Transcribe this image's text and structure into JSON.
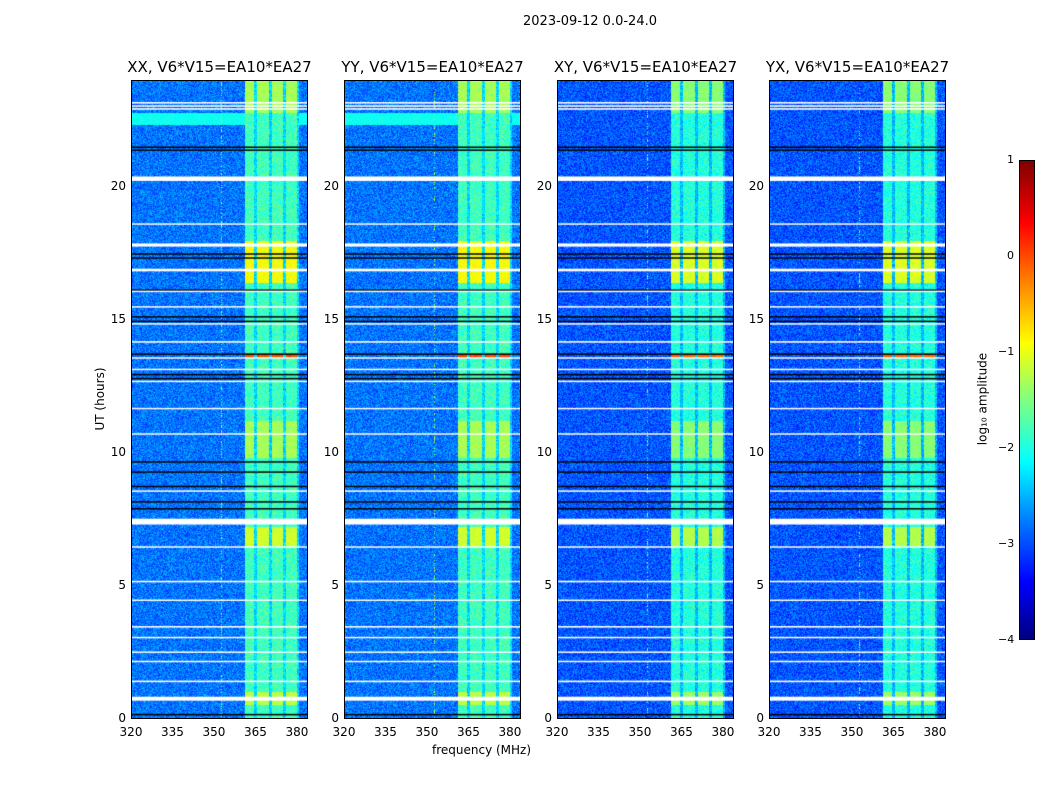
{
  "suptitle": "2023-09-12 0.0-24.0",
  "chart_data": {
    "type": "heatmap",
    "xlabel": "frequency (MHz)",
    "ylabel": "UT (hours)",
    "xlim": [
      320,
      384
    ],
    "ylim": [
      0,
      24
    ],
    "xticks": [
      "320",
      "335",
      "350",
      "365",
      "380"
    ],
    "xtick_values": [
      320,
      335,
      350,
      365,
      380
    ],
    "yticks": [
      "0",
      "5",
      "10",
      "15",
      "20"
    ],
    "ytick_values": [
      0,
      5,
      10,
      15,
      20
    ],
    "panels": [
      {
        "title": "XX, V6*V15=EA10*EA27",
        "cyan_band": true
      },
      {
        "title": "YY, V6*V15=EA10*EA27",
        "cyan_band": true
      },
      {
        "title": "XY, V6*V15=EA10*EA27",
        "cyan_band": false
      },
      {
        "title": "YX, V6*V15=EA10*EA27",
        "cyan_band": false
      }
    ],
    "background_log_amp": -2.8,
    "rfi_subbands_MHz": [
      [
        361,
        364.5
      ],
      [
        365.5,
        370
      ],
      [
        371,
        375
      ],
      [
        376,
        380
      ]
    ],
    "rfi_log_amp": -1.8,
    "bright_hours": [
      [
        16.4,
        18.0,
        -0.9
      ],
      [
        13.6,
        13.75,
        0.0
      ],
      [
        9.8,
        11.2,
        -1.3
      ],
      [
        6.5,
        7.2,
        -1.1
      ],
      [
        0.5,
        1.0,
        -1.2
      ],
      [
        22.8,
        24.0,
        -1.3
      ]
    ],
    "cyan_band_hours": [
      22.35,
      22.8
    ],
    "flagged_white_hours": [
      [
        23.18,
        0.06
      ],
      [
        23.06,
        0.06
      ],
      [
        22.95,
        0.06
      ],
      [
        20.33,
        0.17
      ],
      [
        18.63,
        0.05
      ],
      [
        17.84,
        0.12
      ],
      [
        16.9,
        0.1
      ],
      [
        16.1,
        0.05
      ],
      [
        15.52,
        0.05
      ],
      [
        14.88,
        0.05
      ],
      [
        14.2,
        0.06
      ],
      [
        13.6,
        0.05
      ],
      [
        13.17,
        0.05
      ],
      [
        12.72,
        0.05
      ],
      [
        11.7,
        0.05
      ],
      [
        10.75,
        0.04
      ],
      [
        8.6,
        0.05
      ],
      [
        7.45,
        0.22
      ],
      [
        6.5,
        0.05
      ],
      [
        5.2,
        0.06
      ],
      [
        4.5,
        0.05
      ],
      [
        3.5,
        0.06
      ],
      [
        3.1,
        0.05
      ],
      [
        2.55,
        0.05
      ],
      [
        2.2,
        0.05
      ],
      [
        1.45,
        0.06
      ],
      [
        0.8,
        0.15
      ]
    ],
    "dark_hours": [
      21.54,
      21.43,
      17.53,
      17.38,
      16.17,
      15.17,
      15.0,
      13.77,
      13.0,
      12.85,
      9.72,
      9.34,
      8.8,
      8.22,
      7.96,
      0.23
    ],
    "colorbar": {
      "label": "log₁₀ amplitude",
      "range": [
        -4,
        1
      ],
      "ticks": [
        "1",
        "0",
        "−1",
        "−2",
        "−3",
        "−4"
      ],
      "tick_values": [
        1,
        0,
        -1,
        -2,
        -3,
        -4
      ]
    }
  }
}
